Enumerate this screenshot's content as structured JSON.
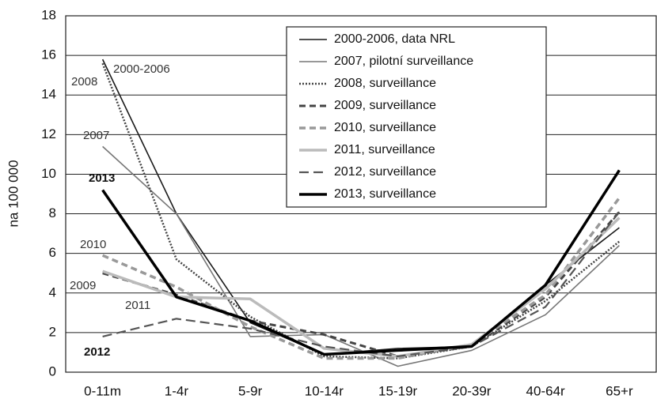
{
  "chart_data": {
    "type": "line",
    "y_label": "na 100 000",
    "categories": [
      "0-11m",
      "1-4r",
      "5-9r",
      "10-14r",
      "15-19r",
      "20-39r",
      "40-64r",
      "65+r"
    ],
    "ylim": [
      0,
      18
    ],
    "yticks": [
      0,
      2,
      4,
      6,
      8,
      10,
      12,
      14,
      16,
      18
    ],
    "grid": true,
    "series": [
      {
        "name": "2000-2006, data NRL",
        "color": "#1a1a1a",
        "style": "solid",
        "values": [
          15.8,
          8.0,
          2.5,
          0.9,
          1.2,
          1.3,
          4.4,
          7.3
        ]
      },
      {
        "name": "2007, pilotní surveillance",
        "color": "#777777",
        "style": "solid",
        "values": [
          11.4,
          8.0,
          1.8,
          1.9,
          0.3,
          1.1,
          2.9,
          6.4
        ]
      },
      {
        "name": "2008, surveillance",
        "color": "#444444",
        "style": "dotted",
        "values": [
          15.6,
          5.7,
          2.8,
          0.8,
          0.7,
          1.3,
          3.6,
          6.6
        ]
      },
      {
        "name": "2009, surveillance",
        "color": "#444444",
        "style": "dashed",
        "values": [
          5.0,
          3.9,
          2.6,
          1.9,
          0.8,
          1.3,
          3.8,
          8.1
        ]
      },
      {
        "name": "2010, surveillance",
        "color": "#999999",
        "style": "dashed",
        "values": [
          5.9,
          4.3,
          2.3,
          0.7,
          0.7,
          1.4,
          3.9,
          8.8
        ]
      },
      {
        "name": "2011, surveillance",
        "color": "#bbbbbb",
        "style": "solid",
        "values": [
          5.1,
          3.8,
          3.7,
          1.2,
          0.8,
          1.4,
          4.2,
          7.8
        ]
      },
      {
        "name": "2012, surveillance",
        "color": "#555555",
        "style": "longdash",
        "values": [
          1.8,
          2.7,
          2.2,
          1.3,
          0.8,
          1.3,
          3.3,
          8.1
        ]
      },
      {
        "name": "2013, surveillance",
        "color": "#000000",
        "style": "solid",
        "values": [
          9.2,
          3.8,
          2.6,
          0.9,
          1.1,
          1.3,
          4.4,
          10.2
        ]
      }
    ],
    "annotations": [
      "2000-2006",
      "2008",
      "2007",
      "2013",
      "2010",
      "2009",
      "2011",
      "2012"
    ]
  }
}
